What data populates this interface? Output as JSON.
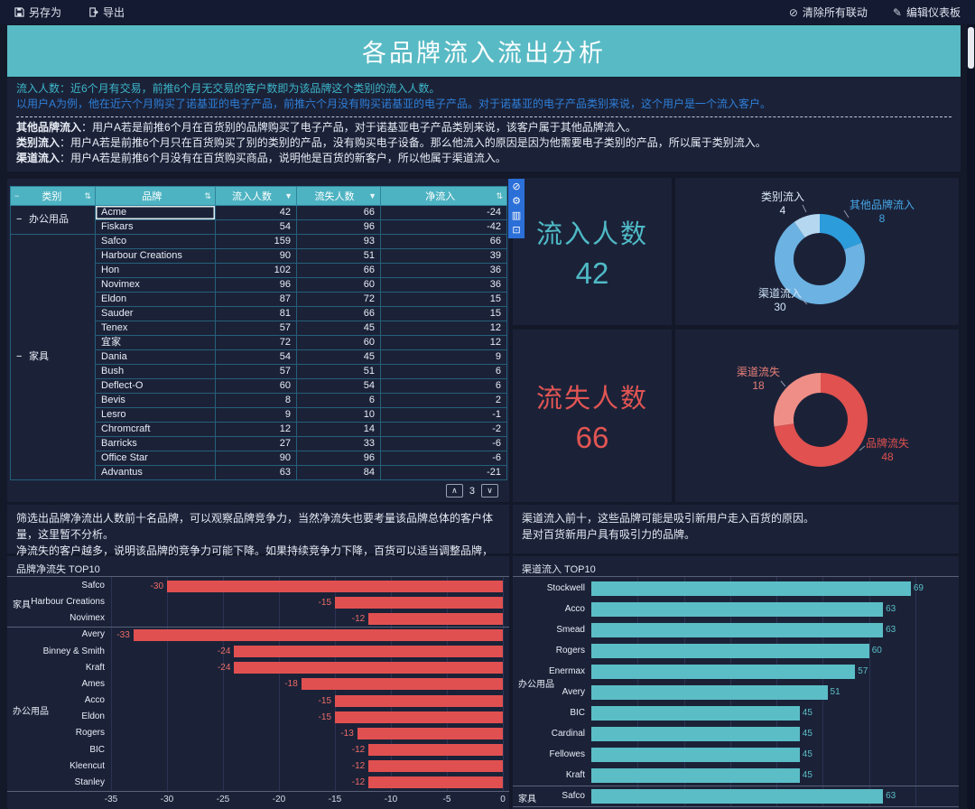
{
  "title": "各品牌流入流出分析",
  "toolbar": {
    "save_as": "另存为",
    "export": "导出",
    "clear_linkage": "清除所有联动",
    "edit_dashboard": "编辑仪表板"
  },
  "description": {
    "line1": "流入人数：近6个月有交易，前推6个月无交易的客户数即为该品牌这个类别的流入人数。",
    "line2": "以用户A为例，他在近六个月购买了诺基亚的电子产品，前推六个月没有购买诺基亚的电子产品。对于诺基亚的电子产品类别来说，这个用户是一个流入客户。",
    "defs": [
      {
        "term": "其他品牌流入",
        "text": "：用户A若是前推6个月在百货别的品牌购买了电子产品，对于诺基亚电子产品类别来说，该客户属于其他品牌流入。"
      },
      {
        "term": "类别流入",
        "text": "：用户A若是前推6个月只在百货购买了别的类别的产品，没有购买电子设备。那么他流入的原因是因为他需要电子类别的产品，所以属于类别流入。"
      },
      {
        "term": "渠道流入",
        "text": "：用户A若是前推6个月没有在百货购买商品，说明他是百货的新客户，所以他属于渠道流入。"
      }
    ]
  },
  "table": {
    "headers": [
      {
        "label": "类别",
        "icon": "sort"
      },
      {
        "label": "品牌",
        "icon": "sort"
      },
      {
        "label": "流入人数",
        "icon": "filter"
      },
      {
        "label": "流失人数",
        "icon": "filter"
      },
      {
        "label": "净流入",
        "icon": "sort"
      }
    ],
    "groups": [
      {
        "category": "办公用品",
        "rows": [
          {
            "brand": "Acme",
            "inflow": 42,
            "outflow": 66,
            "net": -24,
            "selected": true
          },
          {
            "brand": "Fiskars",
            "inflow": 54,
            "outflow": 96,
            "net": -42
          }
        ]
      },
      {
        "category": "家具",
        "rows": [
          {
            "brand": "Safco",
            "inflow": 159,
            "outflow": 93,
            "net": 66
          },
          {
            "brand": "Harbour Creations",
            "inflow": 90,
            "outflow": 51,
            "net": 39
          },
          {
            "brand": "Hon",
            "inflow": 102,
            "outflow": 66,
            "net": 36
          },
          {
            "brand": "Novimex",
            "inflow": 96,
            "outflow": 60,
            "net": 36
          },
          {
            "brand": "Eldon",
            "inflow": 87,
            "outflow": 72,
            "net": 15
          },
          {
            "brand": "Sauder",
            "inflow": 81,
            "outflow": 66,
            "net": 15
          },
          {
            "brand": "Tenex",
            "inflow": 57,
            "outflow": 45,
            "net": 12
          },
          {
            "brand": "宜家",
            "inflow": 72,
            "outflow": 60,
            "net": 12
          },
          {
            "brand": "Dania",
            "inflow": 54,
            "outflow": 45,
            "net": 9
          },
          {
            "brand": "Bush",
            "inflow": 57,
            "outflow": 51,
            "net": 6
          },
          {
            "brand": "Deflect-O",
            "inflow": 60,
            "outflow": 54,
            "net": 6
          },
          {
            "brand": "Bevis",
            "inflow": 8,
            "outflow": 6,
            "net": 2
          },
          {
            "brand": "Lesro",
            "inflow": 9,
            "outflow": 10,
            "net": -1
          },
          {
            "brand": "Chromcraft",
            "inflow": 12,
            "outflow": 14,
            "net": -2
          },
          {
            "brand": "Barricks",
            "inflow": 27,
            "outflow": 33,
            "net": -6
          },
          {
            "brand": "Office Star",
            "inflow": 90,
            "outflow": 96,
            "net": -6
          },
          {
            "brand": "Advantus",
            "inflow": 63,
            "outflow": 84,
            "net": -21
          }
        ]
      }
    ],
    "page": "3"
  },
  "kpi_inflow": {
    "label": "流入人数",
    "value": "42"
  },
  "kpi_outflow": {
    "label": "流失人数",
    "value": "66"
  },
  "notes_left": [
    "筛选出品牌净流出人数前十名品牌，可以观察品牌竞争力，当然净流失也要考量该品牌总体的客户体量，这里暂不分析。",
    "净流失的客户越多，说明该品牌的竞争力可能下降。如果持续竞争力下降，百货可以适当调整品牌，更换更具竞争力的品牌。"
  ],
  "notes_right": [
    "渠道流入前十，这些品牌可能是吸引新用户走入百货的原因。",
    "是对百货新用户具有吸引力的品牌。"
  ],
  "chart_data": [
    {
      "id": "inflow-donut",
      "type": "pie",
      "donut": true,
      "total": 42,
      "slices": [
        {
          "label": "其他品牌流入",
          "value": 8,
          "color": "#2d9cdb",
          "label_color": "#45a5e6"
        },
        {
          "label": "渠道流入",
          "value": 30,
          "color": "#6cb2e2",
          "label_color": "#cfe3f5"
        },
        {
          "label": "类别流入",
          "value": 4,
          "color": "#b5d8f0",
          "label_color": "#dce8f5"
        }
      ]
    },
    {
      "id": "outflow-donut",
      "type": "pie",
      "donut": true,
      "total": 66,
      "slices": [
        {
          "label": "品牌流失",
          "value": 48,
          "color": "#e0514f",
          "label_color": "#e0514f"
        },
        {
          "label": "渠道流失",
          "value": 18,
          "color": "#ef8e86",
          "label_color": "#e87f78"
        }
      ]
    },
    {
      "id": "net-loss-top10",
      "type": "bar",
      "orientation": "horizontal",
      "title": "品牌净流失 TOP10",
      "bar_color": "#e15050",
      "xlim": [
        -35,
        0
      ],
      "ticks": [
        -35,
        -30,
        -25,
        -20,
        -15,
        -10,
        -5,
        0
      ],
      "groups": [
        {
          "category": "家具",
          "items": [
            {
              "brand": "Safco",
              "value": -30
            },
            {
              "brand": "Harbour Creations",
              "value": -15
            },
            {
              "brand": "Novimex",
              "value": -12
            }
          ]
        },
        {
          "category": "办公用品",
          "items": [
            {
              "brand": "Avery",
              "value": -33
            },
            {
              "brand": "Binney & Smith",
              "value": -24
            },
            {
              "brand": "Kraft",
              "value": -24
            },
            {
              "brand": "Ames",
              "value": -18
            },
            {
              "brand": "Acco",
              "value": -15
            },
            {
              "brand": "Eldon",
              "value": -15
            },
            {
              "brand": "Rogers",
              "value": -13
            },
            {
              "brand": "BIC",
              "value": -12
            },
            {
              "brand": "Kleencut",
              "value": -12
            },
            {
              "brand": "Stanley",
              "value": -12
            }
          ]
        }
      ]
    },
    {
      "id": "channel-inflow-top10",
      "type": "bar",
      "orientation": "horizontal",
      "title": "渠道流入 TOP10",
      "bar_color": "#5bbec6",
      "xlim": [
        0,
        78
      ],
      "gridline_step": 10,
      "groups": [
        {
          "category": "办公用品",
          "items": [
            {
              "brand": "Stockwell",
              "value": 69
            },
            {
              "brand": "Acco",
              "value": 63
            },
            {
              "brand": "Smead",
              "value": 63
            },
            {
              "brand": "Rogers",
              "value": 60
            },
            {
              "brand": "Enermax",
              "value": 57
            },
            {
              "brand": "Avery",
              "value": 51
            },
            {
              "brand": "BIC",
              "value": 45
            },
            {
              "brand": "Cardinal",
              "value": 45
            },
            {
              "brand": "Fellowes",
              "value": 45
            },
            {
              "brand": "Kraft",
              "value": 45
            }
          ]
        },
        {
          "category": "家具",
          "items": [
            {
              "brand": "Safco",
              "value": 63
            }
          ]
        }
      ]
    }
  ]
}
